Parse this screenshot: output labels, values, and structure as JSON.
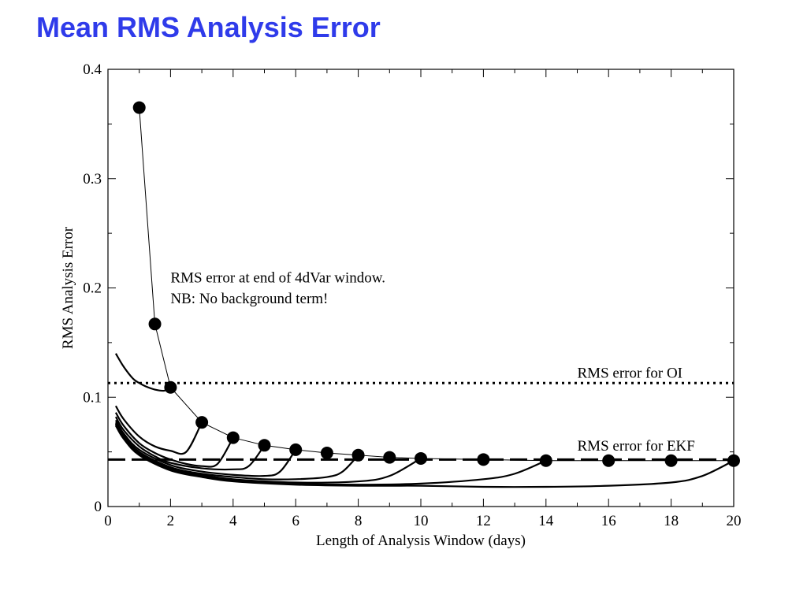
{
  "slide": {
    "title": "Mean RMS Analysis Error",
    "title_color": "#2f3bea"
  },
  "chart_data": {
    "type": "line",
    "title": "",
    "xlabel": "Length of Analysis Window (days)",
    "ylabel": "RMS Analysis Error",
    "xlim": [
      0,
      20
    ],
    "ylim": [
      0,
      0.4
    ],
    "x_ticks": [
      "0",
      "2",
      "4",
      "6",
      "8",
      "10",
      "12",
      "14",
      "16",
      "18",
      "20"
    ],
    "y_ticks": [
      "0",
      "0.1",
      "0.2",
      "0.3",
      "0.4"
    ],
    "grid": false,
    "annotations": [
      {
        "text": "RMS error at end of 4dVar window.",
        "x": 2.0,
        "y": 0.205
      },
      {
        "text": "NB: No background term!",
        "x": 2.0,
        "y": 0.186
      },
      {
        "text": "RMS error for OI",
        "x": 15.0,
        "y": 0.118
      },
      {
        "text": "RMS error for EKF",
        "x": 15.0,
        "y": 0.051
      }
    ],
    "series": [
      {
        "style": "line-markers",
        "x": [
          1,
          1.5,
          2,
          3,
          4,
          5,
          6,
          7,
          8,
          9,
          10,
          12,
          14,
          16,
          18,
          20
        ],
        "y": [
          0.365,
          0.167,
          0.109,
          0.077,
          0.063,
          0.056,
          0.052,
          0.049,
          0.047,
          0.045,
          0.044,
          0.043,
          0.042,
          0.042,
          0.042,
          0.042
        ]
      },
      {
        "style": "dotted",
        "x": [
          0,
          20
        ],
        "y": [
          0.113,
          0.113
        ]
      },
      {
        "style": "dashed",
        "x": [
          0,
          20
        ],
        "y": [
          0.043,
          0.043
        ]
      },
      {
        "style": "line",
        "x": [
          0.25,
          0.5,
          0.8,
          1.0,
          1.2,
          1.5,
          1.8,
          2.0
        ],
        "y": [
          0.14,
          0.128,
          0.117,
          0.113,
          0.11,
          0.107,
          0.106,
          0.109
        ]
      },
      {
        "style": "line",
        "x": [
          0.25,
          0.5,
          1.0,
          1.5,
          2.0,
          2.5,
          3.0
        ],
        "y": [
          0.092,
          0.08,
          0.064,
          0.055,
          0.051,
          0.05,
          0.077
        ]
      },
      {
        "style": "line",
        "x": [
          0.25,
          0.5,
          1.0,
          1.5,
          2.0,
          2.5,
          3.0,
          3.5,
          4.0
        ],
        "y": [
          0.086,
          0.074,
          0.058,
          0.049,
          0.043,
          0.039,
          0.037,
          0.039,
          0.063
        ]
      },
      {
        "style": "line",
        "x": [
          0.25,
          0.5,
          1.0,
          1.5,
          2.0,
          3.0,
          4.0,
          4.5,
          5.0
        ],
        "y": [
          0.082,
          0.07,
          0.055,
          0.046,
          0.04,
          0.035,
          0.034,
          0.037,
          0.056
        ]
      },
      {
        "style": "line",
        "x": [
          0.25,
          0.5,
          1.0,
          2.0,
          3.0,
          4.0,
          5.0,
          5.5,
          6.0
        ],
        "y": [
          0.079,
          0.067,
          0.052,
          0.038,
          0.032,
          0.029,
          0.028,
          0.032,
          0.052
        ]
      },
      {
        "style": "line",
        "x": [
          0.25,
          0.5,
          1.0,
          2.0,
          3.0,
          4.0,
          5.0,
          6.0,
          7.0,
          7.5,
          8.0
        ],
        "y": [
          0.077,
          0.065,
          0.05,
          0.036,
          0.03,
          0.027,
          0.025,
          0.025,
          0.027,
          0.032,
          0.047
        ]
      },
      {
        "style": "line",
        "x": [
          0.25,
          0.5,
          1.0,
          2.0,
          3.0,
          4.0,
          6.0,
          8.0,
          9.0,
          10.0
        ],
        "y": [
          0.076,
          0.064,
          0.049,
          0.035,
          0.029,
          0.025,
          0.022,
          0.023,
          0.028,
          0.044
        ]
      },
      {
        "style": "line",
        "x": [
          0.25,
          0.5,
          1.0,
          2.0,
          3.0,
          4.0,
          6.0,
          8.0,
          10.0,
          12.0,
          13.0,
          14.0
        ],
        "y": [
          0.075,
          0.063,
          0.048,
          0.034,
          0.028,
          0.024,
          0.021,
          0.02,
          0.021,
          0.025,
          0.03,
          0.042
        ]
      },
      {
        "style": "line",
        "x": [
          0.25,
          0.5,
          1.0,
          2.0,
          3.0,
          4.0,
          6.0,
          8.0,
          10.0,
          12.0,
          14.0,
          16.0,
          18.0,
          19.0,
          20.0
        ],
        "y": [
          0.074,
          0.062,
          0.047,
          0.033,
          0.027,
          0.023,
          0.02,
          0.019,
          0.019,
          0.018,
          0.018,
          0.019,
          0.022,
          0.028,
          0.042
        ]
      }
    ]
  }
}
